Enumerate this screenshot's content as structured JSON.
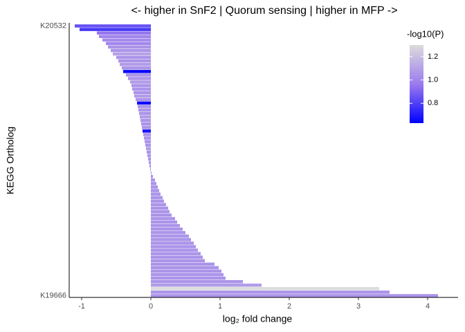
{
  "chart_data": {
    "type": "barh",
    "title": "<- higher in SnF2 | Quorum sensing | higher in MFP ->",
    "xlabel": "log₂ fold change",
    "ylabel": "KEGG Ortholog",
    "categories": [
      "K20532",
      null,
      null,
      null,
      null,
      null,
      null,
      null,
      null,
      null,
      null,
      null,
      null,
      null,
      null,
      null,
      null,
      null,
      null,
      null,
      null,
      null,
      null,
      null,
      null,
      null,
      null,
      null,
      null,
      null,
      null,
      null,
      null,
      null,
      null,
      null,
      null,
      null,
      null,
      null,
      null,
      null,
      null,
      null,
      null,
      null,
      null,
      null,
      null,
      null,
      null,
      null,
      null,
      null,
      null,
      null,
      null,
      null,
      null,
      null,
      null,
      null,
      null,
      null,
      null,
      null,
      null,
      null,
      null,
      null,
      null,
      null,
      null,
      null,
      null,
      null,
      null,
      "K19666"
    ],
    "values": [
      -1.1,
      -1.03,
      -0.78,
      -0.75,
      -0.7,
      -0.65,
      -0.62,
      -0.58,
      -0.55,
      -0.5,
      -0.47,
      -0.45,
      -0.42,
      -0.4,
      -0.36,
      -0.33,
      -0.3,
      -0.28,
      -0.27,
      -0.25,
      -0.24,
      -0.22,
      -0.2,
      -0.19,
      -0.18,
      -0.17,
      -0.16,
      -0.15,
      -0.14,
      -0.13,
      -0.12,
      -0.11,
      -0.1,
      -0.09,
      -0.08,
      -0.07,
      -0.06,
      -0.05,
      -0.04,
      -0.03,
      -0.02,
      -0.01,
      0.01,
      0.03,
      0.06,
      0.08,
      0.1,
      0.12,
      0.14,
      0.17,
      0.19,
      0.22,
      0.25,
      0.27,
      0.3,
      0.35,
      0.38,
      0.42,
      0.46,
      0.5,
      0.55,
      0.58,
      0.62,
      0.65,
      0.68,
      0.72,
      0.75,
      0.78,
      0.92,
      0.98,
      1.02,
      1.05,
      1.08,
      1.33,
      1.6,
      3.3,
      3.45,
      4.15
    ],
    "color_values": [
      0.85,
      0.78,
      0.95,
      1.0,
      1.02,
      1.0,
      1.05,
      1.05,
      1.1,
      1.05,
      1.05,
      1.08,
      1.05,
      0.65,
      1.05,
      1.05,
      1.08,
      1.05,
      1.05,
      1.05,
      1.08,
      1.05,
      0.66,
      1.05,
      1.05,
      1.05,
      1.08,
      1.05,
      1.05,
      1.05,
      0.68,
      1.05,
      1.05,
      1.05,
      1.05,
      1.08,
      1.05,
      1.05,
      1.05,
      1.05,
      1.05,
      1.05,
      1.05,
      1.05,
      1.05,
      1.05,
      1.05,
      1.05,
      1.05,
      1.05,
      1.05,
      1.05,
      1.05,
      1.05,
      1.05,
      1.05,
      1.05,
      1.05,
      1.05,
      1.05,
      1.05,
      1.05,
      1.05,
      1.05,
      1.05,
      1.05,
      1.05,
      1.05,
      1.05,
      1.05,
      1.05,
      1.05,
      1.05,
      1.05,
      1.08,
      1.3,
      1.05,
      1.05
    ],
    "xlim": [
      -1.18,
      4.44
    ],
    "xticks": [
      -1,
      0,
      1,
      2,
      3,
      4
    ],
    "legend_title": "-log10(P)",
    "clim": [
      0.63,
      1.3
    ],
    "cticks": [
      0.8,
      {
        "value": 1,
        "label": "1.0"
      },
      1.2
    ],
    "colorscale": [
      "#0000ff",
      "#9b7bee",
      "#dcdcdc"
    ]
  }
}
